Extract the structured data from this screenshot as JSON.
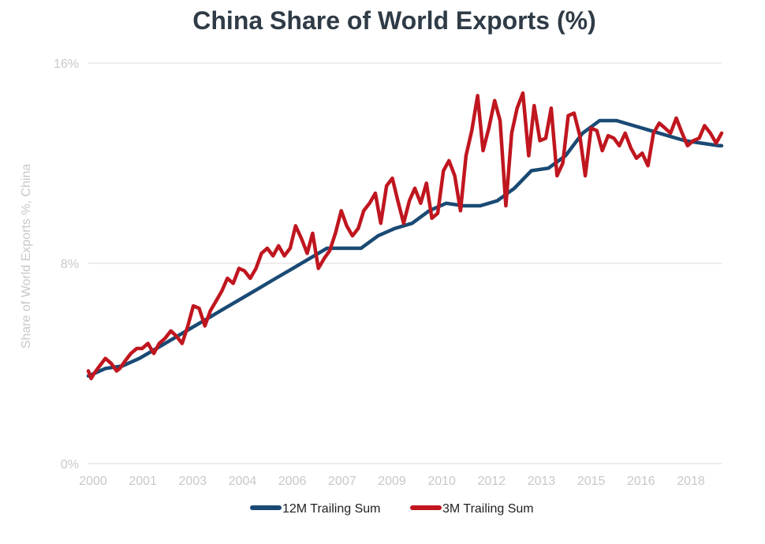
{
  "chart_data": {
    "type": "line",
    "title": "China Share of World Exports (%)",
    "xlabel": "",
    "ylabel": "Share of World Exports %, China",
    "ylim": [
      0,
      16
    ],
    "xlim": [
      2000.0,
      2018.58
    ],
    "y_ticks": [
      "0%",
      "8%",
      "16%"
    ],
    "y_tick_values": [
      0,
      8,
      16
    ],
    "x_ticks": [
      "2000",
      "2001",
      "2003",
      "2004",
      "2006",
      "2007",
      "2009",
      "2010",
      "2012",
      "2013",
      "2015",
      "2016",
      "2018"
    ],
    "grid": "horizontal",
    "legend": "bottom",
    "series": [
      {
        "name": "12M Trailing Sum",
        "color": "#1a4a74",
        "x": [
          2000.0,
          2000.5,
          2001.0,
          2001.5,
          2002.0,
          2002.5,
          2003.0,
          2003.5,
          2004.0,
          2004.5,
          2005.0,
          2005.5,
          2006.0,
          2006.5,
          2007.0,
          2007.5,
          2008.0,
          2008.5,
          2009.0,
          2009.5,
          2010.0,
          2010.5,
          2011.0,
          2011.5,
          2012.0,
          2012.5,
          2013.0,
          2013.5,
          2014.0,
          2014.5,
          2015.0,
          2015.5,
          2016.0,
          2016.5,
          2017.0,
          2017.5,
          2018.0,
          2018.5,
          2018.58
        ],
        "y": [
          3.5,
          3.8,
          3.9,
          4.2,
          4.6,
          5.0,
          5.4,
          5.8,
          6.2,
          6.6,
          7.0,
          7.4,
          7.8,
          8.2,
          8.6,
          8.6,
          8.6,
          9.1,
          9.4,
          9.6,
          10.1,
          10.4,
          10.3,
          10.3,
          10.5,
          11.0,
          11.7,
          11.8,
          12.3,
          13.2,
          13.7,
          13.7,
          13.5,
          13.3,
          13.1,
          12.9,
          12.8,
          12.7,
          12.7
        ]
      },
      {
        "name": "3M Trailing Sum",
        "color": "#c0161f",
        "x": [
          2000.0,
          2000.08,
          2000.17,
          2000.33,
          2000.5,
          2000.67,
          2000.83,
          2000.92,
          2001.08,
          2001.25,
          2001.42,
          2001.58,
          2001.75,
          2001.92,
          2002.08,
          2002.25,
          2002.42,
          2002.58,
          2002.75,
          2002.92,
          2003.08,
          2003.25,
          2003.42,
          2003.58,
          2003.75,
          2003.92,
          2004.08,
          2004.25,
          2004.42,
          2004.58,
          2004.75,
          2004.92,
          2005.08,
          2005.25,
          2005.42,
          2005.58,
          2005.75,
          2005.92,
          2006.08,
          2006.25,
          2006.42,
          2006.58,
          2006.75,
          2006.92,
          2007.08,
          2007.25,
          2007.42,
          2007.58,
          2007.75,
          2007.92,
          2008.08,
          2008.25,
          2008.42,
          2008.58,
          2008.75,
          2008.92,
          2009.08,
          2009.25,
          2009.42,
          2009.58,
          2009.75,
          2009.92,
          2010.08,
          2010.25,
          2010.42,
          2010.58,
          2010.75,
          2010.92,
          2011.08,
          2011.25,
          2011.42,
          2011.58,
          2011.75,
          2011.92,
          2012.08,
          2012.25,
          2012.42,
          2012.58,
          2012.75,
          2012.92,
          2013.08,
          2013.25,
          2013.42,
          2013.58,
          2013.75,
          2013.92,
          2014.08,
          2014.25,
          2014.42,
          2014.58,
          2014.75,
          2014.92,
          2015.08,
          2015.25,
          2015.42,
          2015.58,
          2015.75,
          2015.92,
          2016.08,
          2016.25,
          2016.42,
          2016.58,
          2016.75,
          2016.92,
          2017.08,
          2017.25,
          2017.42,
          2017.58,
          2017.75,
          2017.92,
          2018.08,
          2018.25,
          2018.42,
          2018.58
        ],
        "y": [
          3.7,
          3.4,
          3.6,
          3.9,
          4.2,
          4.0,
          3.7,
          3.8,
          4.1,
          4.4,
          4.6,
          4.6,
          4.8,
          4.4,
          4.8,
          5.0,
          5.3,
          5.1,
          4.8,
          5.5,
          6.3,
          6.2,
          5.5,
          6.1,
          6.5,
          6.9,
          7.4,
          7.2,
          7.8,
          7.7,
          7.4,
          7.8,
          8.4,
          8.6,
          8.3,
          8.7,
          8.3,
          8.6,
          9.5,
          9.0,
          8.4,
          9.2,
          7.8,
          8.2,
          8.5,
          9.2,
          10.1,
          9.5,
          9.1,
          9.4,
          10.1,
          10.4,
          10.8,
          9.6,
          11.1,
          11.4,
          10.5,
          9.6,
          10.5,
          11.0,
          10.4,
          11.2,
          9.8,
          10.0,
          11.7,
          12.1,
          11.5,
          10.1,
          12.3,
          13.3,
          14.7,
          12.5,
          13.4,
          14.5,
          13.7,
          10.3,
          13.2,
          14.2,
          14.8,
          12.3,
          14.3,
          12.9,
          13.0,
          14.2,
          11.5,
          12.0,
          13.9,
          14.0,
          13.1,
          11.5,
          13.4,
          13.3,
          12.5,
          13.1,
          13.0,
          12.7,
          13.2,
          12.6,
          12.2,
          12.4,
          11.9,
          13.2,
          13.6,
          13.4,
          13.2,
          13.8,
          13.2,
          12.7,
          12.9,
          13.0,
          13.5,
          13.2,
          12.8,
          13.2
        ]
      }
    ]
  }
}
